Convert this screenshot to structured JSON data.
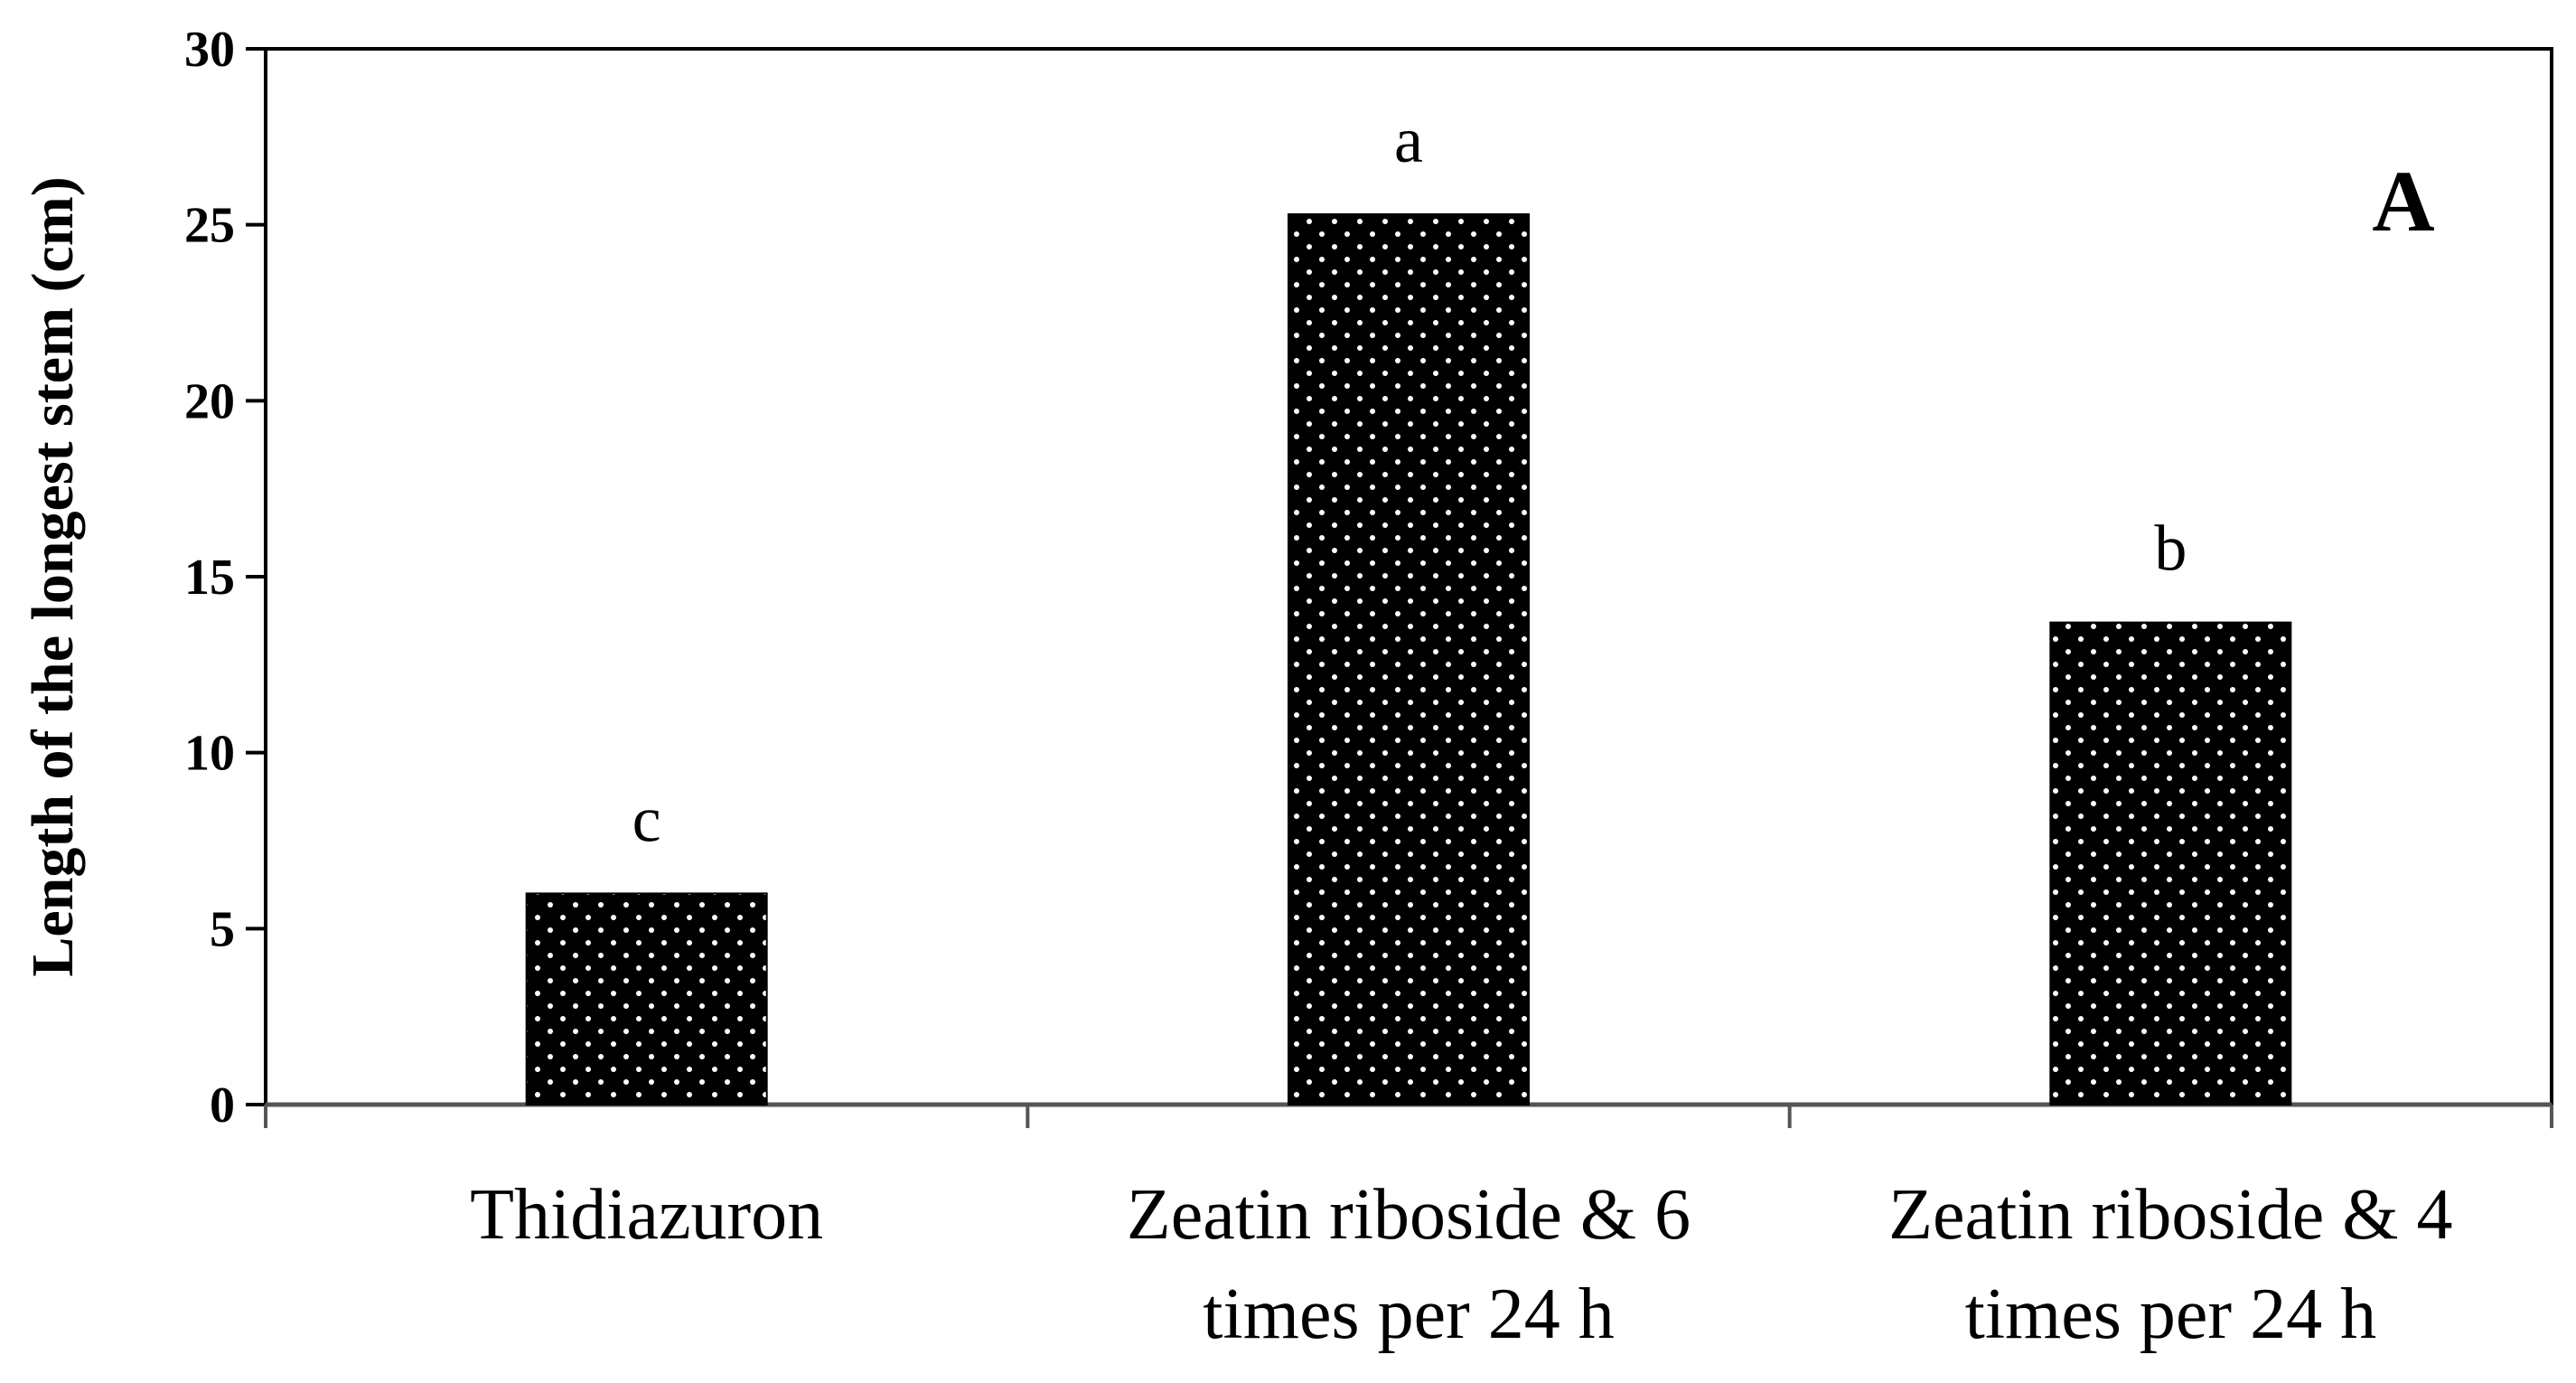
{
  "chart_data": {
    "type": "bar",
    "panel_label": "A",
    "ylabel": "Length of the longest stem (cm)",
    "xlabel": "",
    "ylim": [
      0,
      30
    ],
    "yticks": [
      0,
      5,
      10,
      15,
      20,
      25,
      30
    ],
    "grid": false,
    "legend": "none",
    "bar_color": "#000000",
    "bar_pattern_color": "#ffffff",
    "categories": [
      [
        "Thidiazuron"
      ],
      [
        "Zeatin riboside & 6",
        "times per 24 h"
      ],
      [
        "Zeatin riboside & 4",
        "times per 24 h"
      ]
    ],
    "values": [
      6.0,
      25.3,
      13.7
    ],
    "significance_letters": [
      "c",
      "a",
      "b"
    ]
  }
}
